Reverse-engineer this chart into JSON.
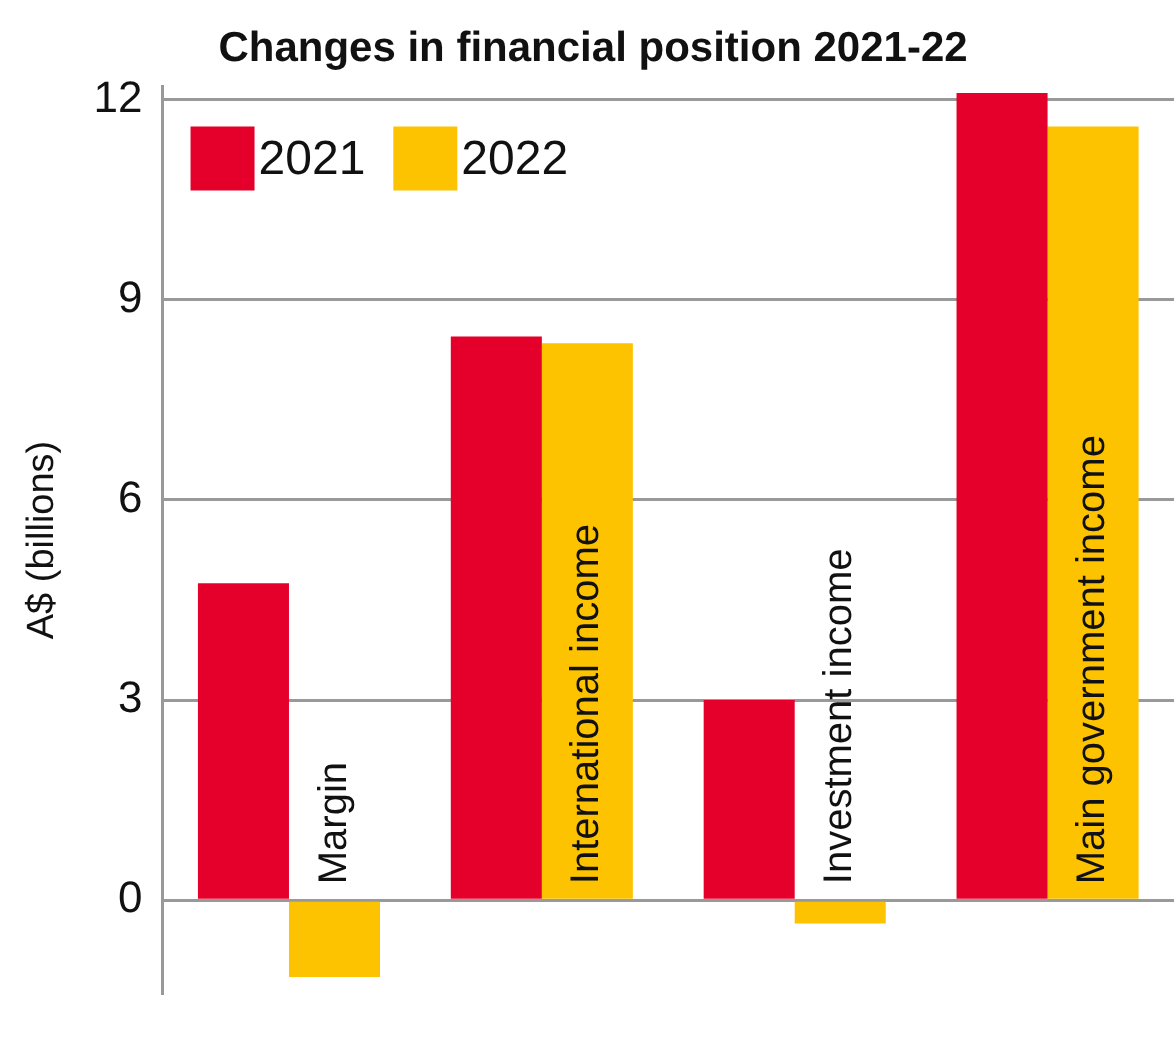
{
  "chart_data": {
    "type": "bar",
    "title": "Changes in financial position 2021-22",
    "ylabel": "A$ (billions)",
    "categories": [
      "Margin",
      "International income",
      "Investment income",
      "Main government income"
    ],
    "series": [
      {
        "name": "2021",
        "color": "#e4002b",
        "values": [
          4.75,
          8.45,
          3.0,
          12.1
        ]
      },
      {
        "name": "2022",
        "color": "#fdc300",
        "values": [
          -1.15,
          8.35,
          -0.35,
          11.6
        ]
      }
    ],
    "ylim": [
      -1.4,
      12.2
    ],
    "yticks": [
      0,
      3,
      6,
      9,
      12
    ],
    "grid": "y",
    "legend": "top left"
  }
}
